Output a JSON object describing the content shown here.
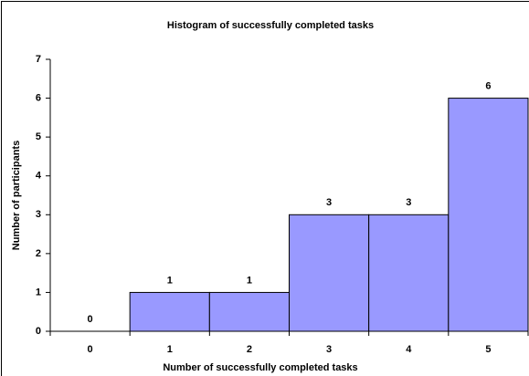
{
  "chart_data": {
    "type": "bar",
    "title": "Histogram of successfully completed tasks",
    "x_label": "Number of successfully completed tasks",
    "y_label": "Number of participants",
    "categories": [
      "0",
      "1",
      "2",
      "3",
      "4",
      "5"
    ],
    "values": [
      0,
      1,
      1,
      3,
      3,
      6
    ],
    "color": "#9999ff",
    "edge_color": "#000000",
    "ylim": [
      0,
      7
    ],
    "yticks": [
      0,
      1,
      2,
      3,
      4,
      5,
      6,
      7
    ],
    "grid": false
  }
}
